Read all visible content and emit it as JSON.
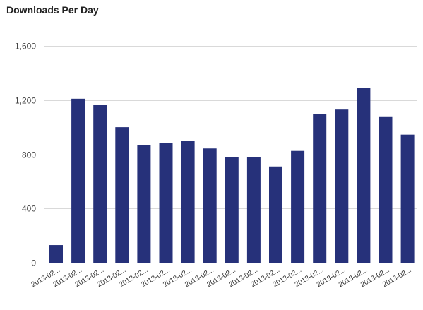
{
  "title": "Downloads Per Day",
  "chart_data": {
    "type": "bar",
    "title": "Downloads Per Day",
    "xlabel": "",
    "ylabel": "",
    "categories": [
      "2013-02...",
      "2013-02...",
      "2013-02...",
      "2013-02...",
      "2013-02...",
      "2013-02...",
      "2013-02...",
      "2013-02...",
      "2013-02...",
      "2013-02...",
      "2013-02...",
      "2013-02...",
      "2013-02...",
      "2013-02...",
      "2013-02...",
      "2013-02...",
      "2013-02..."
    ],
    "values": [
      130,
      1210,
      1165,
      1000,
      870,
      885,
      900,
      843,
      778,
      778,
      710,
      825,
      1095,
      1130,
      1290,
      1080,
      945
    ],
    "ylim": [
      0,
      1600
    ],
    "yticks": [
      0,
      400,
      800,
      1200,
      1600
    ],
    "ytick_labels": [
      "0",
      "400",
      "800",
      "1,200",
      "1,600"
    ],
    "grid": true,
    "legend": "none",
    "bar_color": "#26317a"
  }
}
